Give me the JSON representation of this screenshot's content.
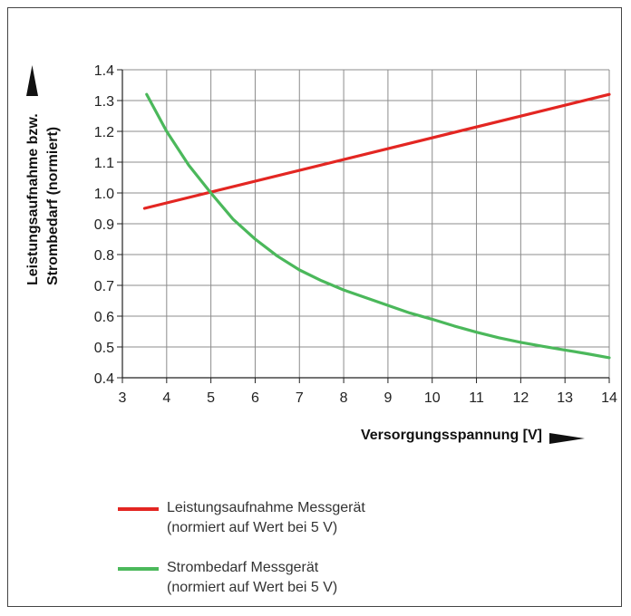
{
  "chart_data": {
    "type": "line",
    "title": "",
    "xlabel": "Versorgungsspannung [V]",
    "ylabel_line1": "Leistungsaufnahme bzw.",
    "ylabel_line2": "Strombedarf (normiert)",
    "xlim": [
      3,
      14
    ],
    "ylim": [
      0.4,
      1.4
    ],
    "xticks": [
      "3",
      "4",
      "5",
      "6",
      "7",
      "8",
      "9",
      "10",
      "11",
      "12",
      "13",
      "14"
    ],
    "yticks": [
      "0.4",
      "0.5",
      "0.6",
      "0.7",
      "0.8",
      "0.9",
      "1.0",
      "1.1",
      "1.2",
      "1.3",
      "1.4"
    ],
    "grid": true,
    "legend_position": "bottom",
    "series": [
      {
        "name": "Leistungsaufnahme Messgerät",
        "note": "(normiert auf Wert bei 5 V)",
        "color": "#e32622",
        "x": [
          3.5,
          14
        ],
        "y": [
          0.95,
          1.32
        ]
      },
      {
        "name": "Strombedarf Messgerät",
        "note": "(normiert auf Wert bei 5 V)",
        "color": "#4bb85b",
        "x": [
          3.55,
          4,
          4.5,
          5,
          5.5,
          6,
          6.5,
          7,
          7.5,
          8,
          8.5,
          9,
          9.5,
          10,
          10.5,
          11,
          11.5,
          12,
          12.5,
          13,
          13.5,
          14
        ],
        "y": [
          1.32,
          1.2,
          1.09,
          1.0,
          0.915,
          0.85,
          0.795,
          0.75,
          0.715,
          0.685,
          0.66,
          0.635,
          0.61,
          0.59,
          0.568,
          0.548,
          0.53,
          0.515,
          0.502,
          0.49,
          0.478,
          0.465
        ]
      }
    ]
  }
}
